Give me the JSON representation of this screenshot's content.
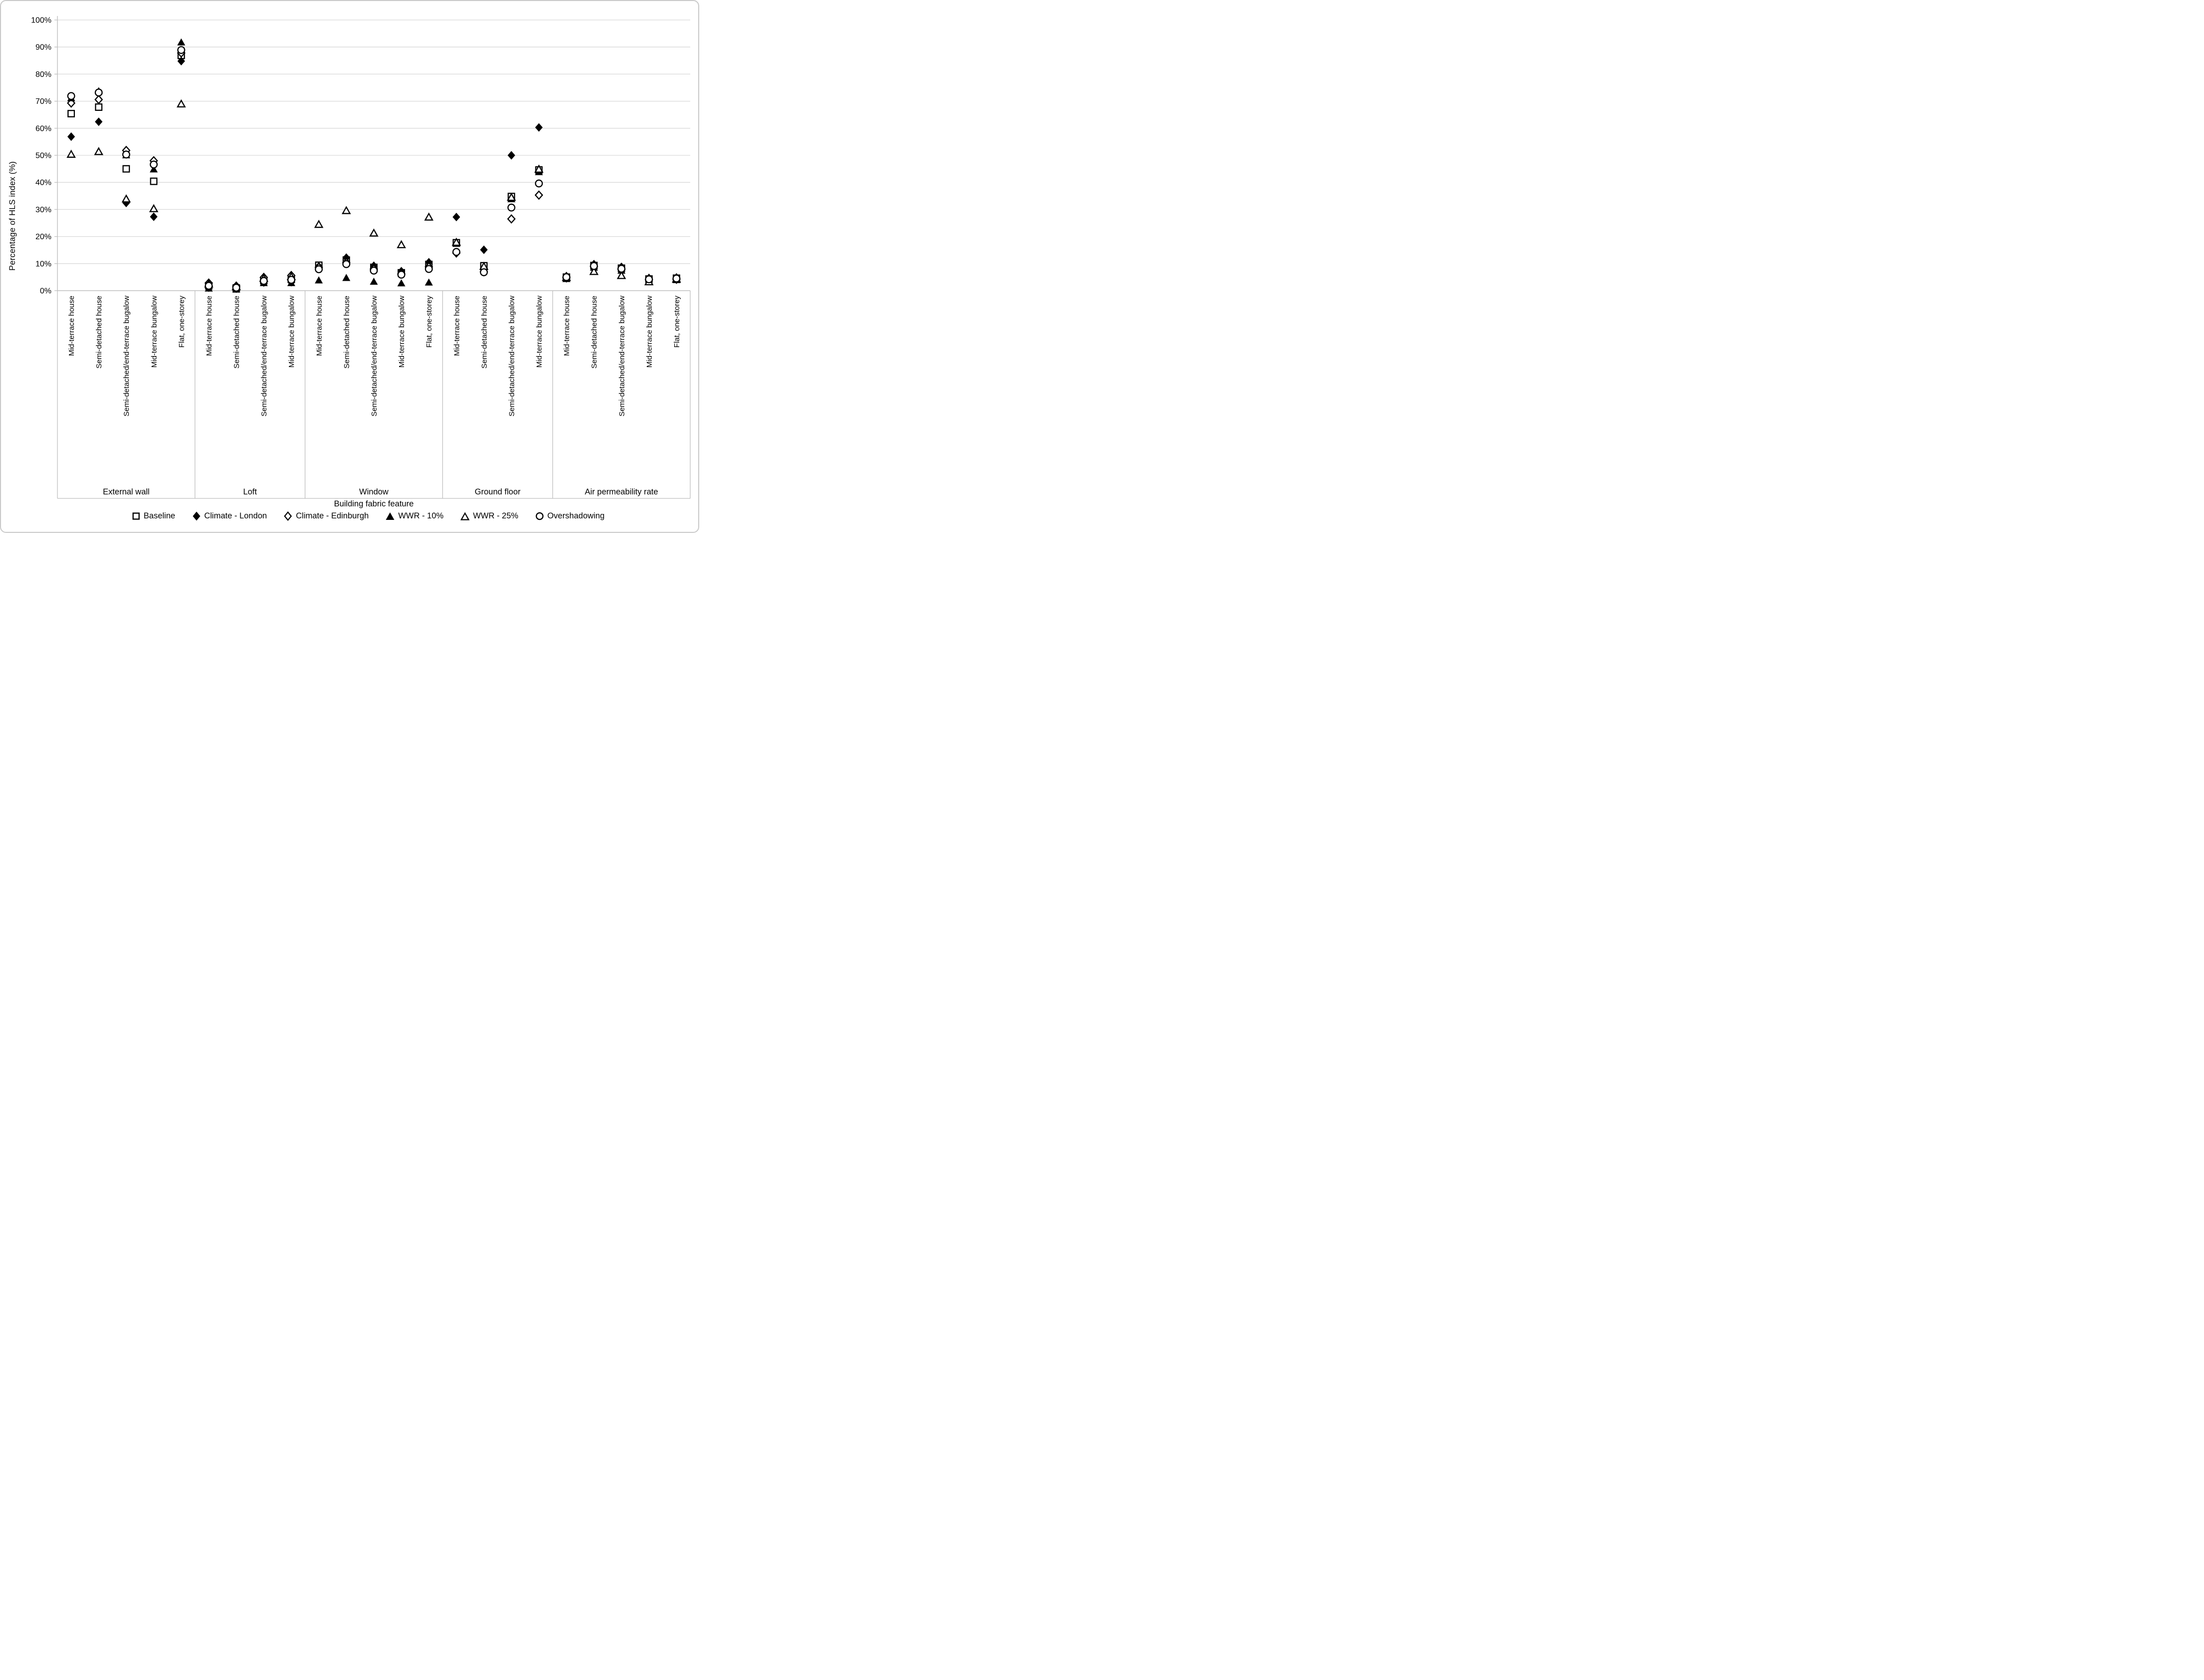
{
  "chart_data": {
    "type": "scatter",
    "title": "",
    "ylabel": "Percentage of HLS index (%)",
    "xlabel": "Building fabric feature",
    "ylim": [
      0,
      100
    ],
    "ytick_step": 10,
    "ytick_labels": [
      "0%",
      "10%",
      "20%",
      "30%",
      "40%",
      "50%",
      "60%",
      "70%",
      "80%",
      "90%",
      "100%"
    ],
    "grid": "horizontal",
    "legend_position": "bottom",
    "marker_color": "#000000",
    "gridline_color": "#d9d9d9",
    "axis_color": "#bfbfbf",
    "groups": [
      {
        "label": "External wall",
        "categories": [
          "Mid-terrace house",
          "Semi-detached house",
          "Semi-detached/end-terrace bugalow",
          "Mid-terrace bungalow",
          "Flat, one-storey"
        ]
      },
      {
        "label": "Loft",
        "categories": [
          "Mid-terrace house",
          "Semi-detached house",
          "Semi-detached/end-terrace bugalow",
          "Mid-terrace bungalow"
        ]
      },
      {
        "label": "Window",
        "categories": [
          "Mid-terrace house",
          "Semi-detached house",
          "Semi-detached/end-terrace bugalow",
          "Mid-terrace bungalow",
          "Flat, one-storey"
        ]
      },
      {
        "label": "Ground floor",
        "categories": [
          "Mid-terrace house",
          "Semi-detached house",
          "Semi-detached/end-terrace bugalow",
          "Mid-terrace bungalow"
        ]
      },
      {
        "label": "Air permeability rate",
        "categories": [
          "Mid-terrace house",
          "Semi-detached house",
          "Semi-detached/end-terrace bugalow",
          "Mid-terrace bungalow",
          "Flat, one-storey"
        ]
      }
    ],
    "series": [
      {
        "name": "Baseline",
        "marker": "open-square",
        "values": [
          [
            65.4,
            67.8,
            45.0,
            40.4,
            86.9
          ],
          [
            1.8,
            1.0,
            3.7,
            4.2
          ],
          [
            9.4,
            11.3,
            8.6,
            6.6,
            9.7
          ],
          [
            17.7,
            9.2,
            34.8,
            44.6
          ],
          [
            5.0,
            9.3,
            8.3,
            4.3,
            4.6
          ]
        ]
      },
      {
        "name": "Climate - London",
        "marker": "filled-diamond",
        "values": [
          [
            56.9,
            62.4,
            32.4,
            27.3,
            84.8
          ],
          [
            1.1,
            0.7,
            3.0,
            3.1
          ],
          [
            9.0,
            12.2,
            9.2,
            7.2,
            10.5
          ],
          [
            27.2,
            15.1,
            50.0,
            60.3
          ],
          [
            5.4,
            9.8,
            8.8,
            4.7,
            4.9
          ]
        ]
      },
      {
        "name": "Climate - Edinburgh",
        "marker": "open-diamond",
        "values": [
          [
            69.3,
            70.6,
            51.8,
            48.0,
            87.8
          ],
          [
            2.8,
            1.7,
            4.9,
            5.6
          ],
          [
            8.6,
            10.4,
            8.0,
            6.2,
            8.8
          ],
          [
            13.9,
            7.0,
            26.5,
            35.3
          ],
          [
            4.7,
            8.9,
            7.9,
            4.0,
            4.2
          ]
        ]
      },
      {
        "name": "WWR - 10%",
        "marker": "filled-triangle",
        "values": [
          [
            71.2,
            73.8,
            50.1,
            44.9,
            91.8
          ],
          [
            0.9,
            0.5,
            2.9,
            2.9
          ],
          [
            3.9,
            4.8,
            3.4,
            2.8,
            3.1
          ],
          [
            17.4,
            8.8,
            33.9,
            43.9
          ],
          [
            4.4,
            8.6,
            7.5,
            3.6,
            4.0
          ]
        ]
      },
      {
        "name": "WWR - 25%",
        "marker": "open-triangle",
        "values": [
          [
            50.4,
            51.4,
            33.9,
            30.3,
            69.0
          ],
          [
            2.5,
            1.5,
            4.6,
            5.2
          ],
          [
            24.5,
            29.6,
            21.3,
            17.0,
            27.2
          ],
          [
            17.9,
            9.0,
            34.5,
            44.9
          ],
          [
            4.9,
            7.1,
            5.6,
            3.3,
            4.3
          ]
        ]
      },
      {
        "name": "Overshadowing",
        "marker": "open-circle",
        "values": [
          [
            71.9,
            73.2,
            50.3,
            46.6,
            88.9
          ],
          [
            1.8,
            1.1,
            3.6,
            4.0
          ],
          [
            7.9,
            9.8,
            7.4,
            5.9,
            8.0
          ],
          [
            14.3,
            6.8,
            30.7,
            39.6
          ],
          [
            5.0,
            9.1,
            8.1,
            4.2,
            4.5
          ]
        ]
      }
    ]
  }
}
